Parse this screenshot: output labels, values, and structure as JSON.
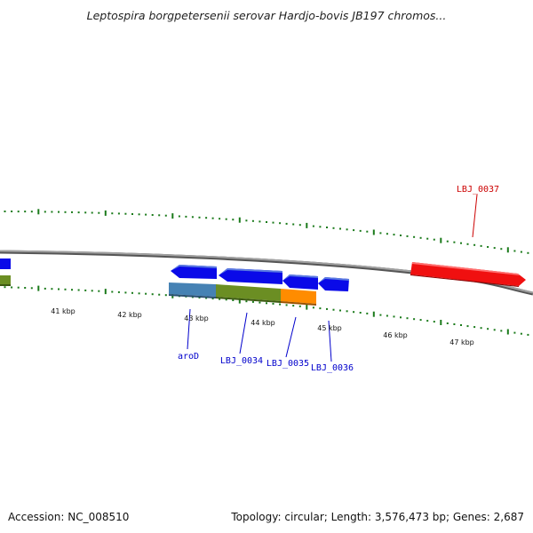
{
  "title": "Leptospira borgpetersenii serovar Hardjo-bovis JB197 chromos...",
  "footer": {
    "accession": "Accession: NC_008510",
    "topology": "Topology: circular; Length: 3,576,473 bp; Genes: 2,687"
  },
  "kbp_labels": [
    "41 kbp",
    "42 kbp",
    "43 kbp",
    "44 kbp",
    "45 kbp",
    "46 kbp",
    "47 kbp"
  ],
  "genes": [
    {
      "label": "aroD",
      "color": "#0000cc"
    },
    {
      "label": "LBJ_0034",
      "color": "#0000cc"
    },
    {
      "label": "LBJ_0035",
      "color": "#0000cc"
    },
    {
      "label": "LBJ_0036",
      "color": "#0000cc"
    },
    {
      "label": "LBJ_0037",
      "color": "#cc0000"
    }
  ],
  "colors": {
    "tick_green": "#1a7a1a",
    "backbone_gray": "#888888",
    "cds_blue": "#0a0ae8",
    "cds_red": "#f01010",
    "cog_steelblue": "#4682b4",
    "cog_olive": "#6b8e23",
    "cog_orange": "#ff8c00"
  }
}
